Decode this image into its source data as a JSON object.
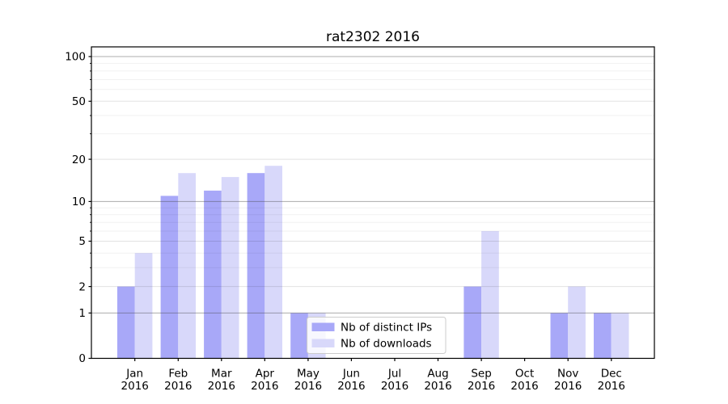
{
  "chart_data": {
    "type": "bar",
    "title": "rat2302 2016",
    "categories": [
      "Jan",
      "Feb",
      "Mar",
      "Apr",
      "May",
      "Jun",
      "Jul",
      "Aug",
      "Sep",
      "Oct",
      "Nov",
      "Dec"
    ],
    "category_year": "2016",
    "series": [
      {
        "name": "Nb of distinct IPs",
        "color": "#a8a8f8",
        "values": [
          2,
          11,
          12,
          16,
          1,
          0,
          0,
          0,
          2,
          0,
          1,
          1
        ]
      },
      {
        "name": "Nb of downloads",
        "color": "#d8d8fa",
        "values": [
          4,
          16,
          15,
          18,
          1,
          0,
          0,
          0,
          6,
          0,
          2,
          1
        ]
      }
    ],
    "xlabel": "",
    "ylabel": "",
    "y_scale": "log1p",
    "y_ticks": [
      0,
      1,
      2,
      5,
      10,
      20,
      50,
      100
    ],
    "y_major_grid": [
      1,
      10,
      100
    ],
    "y_mid_grid": [
      2,
      5,
      20,
      50
    ],
    "y_minor_grid": [
      3,
      4,
      6,
      7,
      8,
      9,
      30,
      40,
      60,
      70,
      80,
      90
    ],
    "ylim": [
      0,
      115
    ],
    "grid": true,
    "legend_position": "lower-center"
  },
  "style": {
    "background": "#ffffff",
    "spine_color": "#000000",
    "major_grid_color": "rgba(70,70,70,0.45)",
    "mid_grid_color": "rgba(0,0,0,0.115)",
    "minor_grid_color": "rgba(0,0,0,0.055)",
    "legend_bg": "rgba(255,255,255,0.8)",
    "legend_border": "#cccccc",
    "text_color": "#000000"
  }
}
